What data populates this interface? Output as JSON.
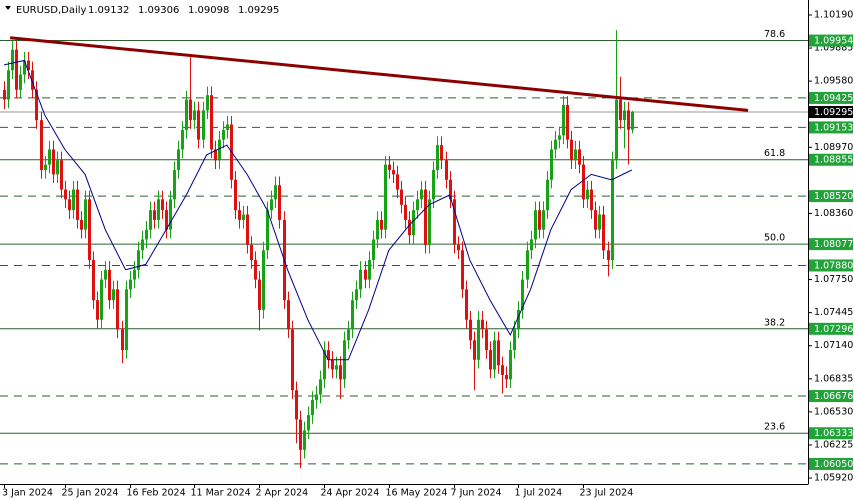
{
  "chart_data": {
    "type": "candlestick",
    "symbol": "EURUSD,Daily",
    "up_color": "#16a316",
    "down_color": "#e01010",
    "xlim": [
      -1,
      198.5
    ],
    "ylim": [
      1.05865,
      1.10328
    ],
    "xticks": [
      {
        "value": 0,
        "label": "3 Jan 2024"
      },
      {
        "value": 15,
        "label": "25 Jan 2024"
      },
      {
        "value": 31,
        "label": "16 Feb 2024"
      },
      {
        "value": 47,
        "label": "11 Mar 2024"
      },
      {
        "value": 63,
        "label": "2 Apr 2024"
      },
      {
        "value": 79,
        "label": "24 Apr 2024"
      },
      {
        "value": 95,
        "label": "16 May 2024"
      },
      {
        "value": 111,
        "label": "7 Jun 2024"
      },
      {
        "value": 127,
        "label": "1 Jul 2024"
      },
      {
        "value": 143,
        "label": "23 Jul 2024"
      }
    ],
    "yticks": [
      {
        "value": 1.1019,
        "label": "1.10190"
      },
      {
        "value": 1.09885,
        "label": "1.09885"
      },
      {
        "value": 1.0958,
        "label": "1.09580"
      },
      {
        "value": 1.0897,
        "label": "1.08970"
      },
      {
        "value": 1.0836,
        "label": "1.08360"
      },
      {
        "value": 1.0775,
        "label": "1.07750"
      },
      {
        "value": 1.07445,
        "label": "1.07445"
      },
      {
        "value": 1.0714,
        "label": "1.07140"
      },
      {
        "value": 1.06835,
        "label": "1.06835"
      },
      {
        "value": 1.0653,
        "label": "1.06530"
      },
      {
        "value": 1.06225,
        "label": "1.06225"
      },
      {
        "value": 1.0592,
        "label": "1.05920"
      }
    ],
    "levels": [
      {
        "value": 1.09954,
        "label": "1.09954",
        "fib": "78.6",
        "style": "solid"
      },
      {
        "value": 1.09425,
        "label": "1.09425",
        "style": "dashed"
      },
      {
        "value": 1.09153,
        "label": "1.09153",
        "style": "dashed"
      },
      {
        "value": 1.08855,
        "label": "1.08855",
        "fib": "61.8",
        "style": "solid"
      },
      {
        "value": 1.0852,
        "label": "1.08520",
        "style": "dashed"
      },
      {
        "value": 1.08077,
        "label": "1.08077",
        "fib": "50.0",
        "style": "solid"
      },
      {
        "value": 1.0788,
        "label": "1.07880",
        "style": "dashed"
      },
      {
        "value": 1.07296,
        "label": "1.07296",
        "fib": "38.2",
        "style": "solid"
      },
      {
        "value": 1.06676,
        "label": "1.06676",
        "style": "dashed"
      },
      {
        "value": 1.06333,
        "label": "1.06333",
        "fib": "23.6",
        "style": "solid"
      },
      {
        "value": 1.0605,
        "label": "1.06050",
        "style": "dashed"
      }
    ],
    "level_color": "#2f5f2f",
    "label_color": "#22a33a",
    "trendline": {
      "color": "#8b0000",
      "x": [
        1.5,
        183.7
      ],
      "y": [
        1.0998,
        1.0931
      ]
    },
    "ma": {
      "color": "#00008b",
      "x": [
        0,
        5,
        10,
        15,
        20,
        25,
        30,
        35,
        40,
        45,
        50,
        55,
        60,
        65,
        70,
        75,
        80,
        85,
        90,
        95,
        100,
        105,
        110,
        115,
        120,
        125,
        130,
        135,
        140,
        145,
        150,
        155
      ],
      "values": [
        1.0973,
        1.0977,
        1.0927,
        1.0895,
        1.0872,
        1.0821,
        1.0784,
        1.0789,
        1.0821,
        1.0853,
        1.089,
        1.0899,
        1.0872,
        1.0839,
        1.0784,
        1.0738,
        1.0701,
        1.0701,
        1.0747,
        1.0802,
        1.0825,
        1.0844,
        1.0853,
        1.0793,
        1.0756,
        1.0724,
        1.0766,
        1.0821,
        1.0858,
        1.0872,
        1.0867,
        1.0876
      ]
    },
    "candles": [
      [
        1.095,
        1.0958,
        1.0932,
        1.0941
      ],
      [
        1.0941,
        1.0976,
        1.0933,
        1.0968
      ],
      [
        1.0968,
        1.0995,
        1.096,
        1.0987
      ],
      [
        1.0987,
        1.0995,
        1.0942,
        1.095
      ],
      [
        1.095,
        1.0972,
        1.0942,
        1.0964
      ],
      [
        1.0964,
        1.0985,
        1.0956,
        1.0977
      ],
      [
        1.0977,
        1.0985,
        1.096,
        1.0968
      ],
      [
        1.0968,
        1.0976,
        1.0942,
        1.095
      ],
      [
        1.095,
        1.0958,
        1.0914,
        1.0922
      ],
      [
        1.0922,
        1.093,
        1.0868,
        1.0876
      ],
      [
        1.0876,
        1.0889,
        1.0868,
        1.0881
      ],
      [
        1.0881,
        1.0903,
        1.0873,
        1.0895
      ],
      [
        1.0895,
        1.0903,
        1.0864,
        1.0872
      ],
      [
        1.0872,
        1.0893,
        1.0864,
        1.0885
      ],
      [
        1.0885,
        1.0893,
        1.085,
        1.0858
      ],
      [
        1.0858,
        1.0866,
        1.0841,
        1.0849
      ],
      [
        1.0849,
        1.0857,
        1.0831,
        1.0839
      ],
      [
        1.0839,
        1.0866,
        1.0831,
        1.0858
      ],
      [
        1.0858,
        1.0866,
        1.0822,
        1.083
      ],
      [
        1.083,
        1.0838,
        1.0813,
        1.0821
      ],
      [
        1.0821,
        1.0857,
        1.0813,
        1.0849
      ],
      [
        1.0849,
        1.0857,
        1.0785,
        1.0793
      ],
      [
        1.0793,
        1.0801,
        1.0748,
        1.0756
      ],
      [
        1.0756,
        1.0764,
        1.073,
        1.0738
      ],
      [
        1.0738,
        1.0783,
        1.073,
        1.0775
      ],
      [
        1.0775,
        1.0792,
        1.0767,
        1.0784
      ],
      [
        1.0784,
        1.0792,
        1.0748,
        1.0756
      ],
      [
        1.0756,
        1.0774,
        1.0748,
        1.0766
      ],
      [
        1.0766,
        1.0774,
        1.0721,
        1.0729
      ],
      [
        1.0729,
        1.0737,
        1.0698,
        1.071
      ],
      [
        1.071,
        1.0774,
        1.0702,
        1.0766
      ],
      [
        1.0766,
        1.0783,
        1.0758,
        1.0775
      ],
      [
        1.0775,
        1.0792,
        1.0767,
        1.0784
      ],
      [
        1.0784,
        1.081,
        1.0776,
        1.0802
      ],
      [
        1.0802,
        1.082,
        1.0794,
        1.0812
      ],
      [
        1.0812,
        1.0829,
        1.0804,
        1.0821
      ],
      [
        1.0821,
        1.0847,
        1.0813,
        1.0839
      ],
      [
        1.0839,
        1.0847,
        1.0822,
        1.083
      ],
      [
        1.083,
        1.0857,
        1.0822,
        1.0849
      ],
      [
        1.0849,
        1.0857,
        1.0831,
        1.0839
      ],
      [
        1.0839,
        1.0847,
        1.0813,
        1.0821
      ],
      [
        1.0821,
        1.0857,
        1.0813,
        1.0849
      ],
      [
        1.0849,
        1.0884,
        1.0841,
        1.0876
      ],
      [
        1.0876,
        1.0903,
        1.0868,
        1.0895
      ],
      [
        1.0895,
        1.0921,
        1.0887,
        1.0913
      ],
      [
        1.0913,
        1.0949,
        1.0905,
        1.0941
      ],
      [
        1.0941,
        1.098,
        1.0914,
        1.0922
      ],
      [
        1.0922,
        1.0939,
        1.0914,
        1.0931
      ],
      [
        1.0931,
        1.0939,
        1.0896,
        1.0904
      ],
      [
        1.0904,
        1.0939,
        1.0896,
        1.0931
      ],
      [
        1.0931,
        1.0953,
        1.0923,
        1.0945
      ],
      [
        1.0945,
        1.0953,
        1.0887,
        1.0895
      ],
      [
        1.0895,
        1.0903,
        1.0877,
        1.0885
      ],
      [
        1.0885,
        1.0912,
        1.0877,
        1.0904
      ],
      [
        1.0904,
        1.0921,
        1.0896,
        1.0913
      ],
      [
        1.0913,
        1.0926,
        1.0905,
        1.0918
      ],
      [
        1.0918,
        1.0926,
        1.0859,
        1.0867
      ],
      [
        1.0867,
        1.0875,
        1.0831,
        1.0839
      ],
      [
        1.0839,
        1.0847,
        1.0822,
        1.083
      ],
      [
        1.083,
        1.0843,
        1.0822,
        1.0835
      ],
      [
        1.0835,
        1.0843,
        1.0799,
        1.0807
      ],
      [
        1.0807,
        1.0815,
        1.0785,
        1.0793
      ],
      [
        1.0793,
        1.0801,
        1.0767,
        1.0775
      ],
      [
        1.0775,
        1.0783,
        1.0728,
        1.0747
      ],
      [
        1.0747,
        1.081,
        1.0739,
        1.0802
      ],
      [
        1.0802,
        1.0847,
        1.0794,
        1.0839
      ],
      [
        1.0839,
        1.0857,
        1.0831,
        1.0849
      ],
      [
        1.0849,
        1.087,
        1.0841,
        1.0862
      ],
      [
        1.0862,
        1.087,
        1.0822,
        1.083
      ],
      [
        1.083,
        1.0838,
        1.0748,
        1.0756
      ],
      [
        1.0756,
        1.0764,
        1.0721,
        1.0729
      ],
      [
        1.0729,
        1.0737,
        1.0665,
        1.0673
      ],
      [
        1.0673,
        1.0681,
        1.0624,
        1.0646
      ],
      [
        1.0646,
        1.0654,
        1.0601,
        1.0618
      ],
      [
        1.0618,
        1.0644,
        1.061,
        1.0636
      ],
      [
        1.0636,
        1.0658,
        1.0628,
        1.065
      ],
      [
        1.065,
        1.0672,
        1.0642,
        1.0664
      ],
      [
        1.0664,
        1.0677,
        1.0656,
        1.0669
      ],
      [
        1.0669,
        1.0691,
        1.0661,
        1.0683
      ],
      [
        1.0683,
        1.0718,
        1.0675,
        1.071
      ],
      [
        1.071,
        1.0718,
        1.0693,
        1.0701
      ],
      [
        1.0701,
        1.0709,
        1.0684,
        1.0692
      ],
      [
        1.0692,
        1.0704,
        1.0684,
        1.0696
      ],
      [
        1.0696,
        1.0704,
        1.0665,
        1.0683
      ],
      [
        1.0683,
        1.0727,
        1.0675,
        1.0719
      ],
      [
        1.0719,
        1.0737,
        1.0711,
        1.0729
      ],
      [
        1.0729,
        1.0764,
        1.0721,
        1.0756
      ],
      [
        1.0756,
        1.0774,
        1.0748,
        1.0766
      ],
      [
        1.0766,
        1.0792,
        1.0758,
        1.0784
      ],
      [
        1.0784,
        1.0792,
        1.0767,
        1.0775
      ],
      [
        1.0775,
        1.0801,
        1.0767,
        1.0793
      ],
      [
        1.0793,
        1.082,
        1.0785,
        1.0812
      ],
      [
        1.0812,
        1.0838,
        1.0804,
        1.083
      ],
      [
        1.083,
        1.0838,
        1.0813,
        1.0821
      ],
      [
        1.0821,
        1.0889,
        1.0813,
        1.0881
      ],
      [
        1.0881,
        1.0889,
        1.0868,
        1.0876
      ],
      [
        1.0876,
        1.0884,
        1.0864,
        1.0872
      ],
      [
        1.0872,
        1.088,
        1.085,
        1.0858
      ],
      [
        1.0858,
        1.0866,
        1.0836,
        1.0844
      ],
      [
        1.0844,
        1.0852,
        1.0822,
        1.083
      ],
      [
        1.083,
        1.0838,
        1.0808,
        1.0816
      ],
      [
        1.0816,
        1.0847,
        1.0808,
        1.0839
      ],
      [
        1.0839,
        1.0857,
        1.0831,
        1.0849
      ],
      [
        1.0849,
        1.0866,
        1.0841,
        1.0858
      ],
      [
        1.0858,
        1.0866,
        1.0799,
        1.0807
      ],
      [
        1.0807,
        1.0857,
        1.0799,
        1.0849
      ],
      [
        1.0849,
        1.0884,
        1.0841,
        1.0876
      ],
      [
        1.0876,
        1.0907,
        1.0868,
        1.0899
      ],
      [
        1.0899,
        1.0907,
        1.0877,
        1.0885
      ],
      [
        1.0885,
        1.0893,
        1.0859,
        1.0867
      ],
      [
        1.0867,
        1.0875,
        1.0841,
        1.0849
      ],
      [
        1.0849,
        1.0857,
        1.0799,
        1.0807
      ],
      [
        1.0807,
        1.0815,
        1.0794,
        1.0802
      ],
      [
        1.0802,
        1.081,
        1.0758,
        1.0766
      ],
      [
        1.0766,
        1.0774,
        1.073,
        1.0738
      ],
      [
        1.0738,
        1.0746,
        1.0711,
        1.0719
      ],
      [
        1.0719,
        1.0727,
        1.0673,
        1.0701
      ],
      [
        1.0701,
        1.0746,
        1.0693,
        1.0738
      ],
      [
        1.0738,
        1.0746,
        1.0721,
        1.0729
      ],
      [
        1.0729,
        1.0737,
        1.0702,
        1.071
      ],
      [
        1.071,
        1.0718,
        1.0684,
        1.0692
      ],
      [
        1.0692,
        1.0727,
        1.0684,
        1.0719
      ],
      [
        1.0719,
        1.0727,
        1.0688,
        1.0696
      ],
      [
        1.0696,
        1.0704,
        1.067,
        1.0687
      ],
      [
        1.0687,
        1.0695,
        1.0675,
        1.0683
      ],
      [
        1.0683,
        1.0718,
        1.0675,
        1.071
      ],
      [
        1.071,
        1.0737,
        1.0702,
        1.0729
      ],
      [
        1.0729,
        1.0755,
        1.0721,
        1.0747
      ],
      [
        1.0747,
        1.0783,
        1.0739,
        1.0775
      ],
      [
        1.0775,
        1.081,
        1.0767,
        1.0802
      ],
      [
        1.0802,
        1.082,
        1.0794,
        1.0812
      ],
      [
        1.0812,
        1.0847,
        1.0804,
        1.0839
      ],
      [
        1.0839,
        1.0847,
        1.0813,
        1.0821
      ],
      [
        1.0821,
        1.0847,
        1.0813,
        1.0839
      ],
      [
        1.0839,
        1.0875,
        1.0831,
        1.0867
      ],
      [
        1.0867,
        1.0903,
        1.0859,
        1.0895
      ],
      [
        1.0895,
        1.0912,
        1.0887,
        1.0904
      ],
      [
        1.0904,
        1.0916,
        1.0896,
        1.0908
      ],
      [
        1.0908,
        1.0944,
        1.09,
        1.0936
      ],
      [
        1.0936,
        1.0944,
        1.0896,
        1.0904
      ],
      [
        1.0904,
        1.0912,
        1.0877,
        1.0885
      ],
      [
        1.0885,
        1.0903,
        1.0877,
        1.0895
      ],
      [
        1.0895,
        1.0903,
        1.0873,
        1.0881
      ],
      [
        1.0881,
        1.0889,
        1.0841,
        1.0849
      ],
      [
        1.0849,
        1.0866,
        1.0841,
        1.0858
      ],
      [
        1.0858,
        1.0866,
        1.0831,
        1.0839
      ],
      [
        1.0839,
        1.0847,
        1.0813,
        1.0821
      ],
      [
        1.0821,
        1.0843,
        1.0813,
        1.0835
      ],
      [
        1.0835,
        1.0843,
        1.0794,
        1.0802
      ],
      [
        1.0802,
        1.081,
        1.0778,
        1.0793
      ],
      [
        1.0793,
        1.0893,
        1.0785,
        1.0885
      ],
      [
        1.0885,
        1.1005,
        1.0877,
        1.0941
      ],
      [
        1.0941,
        1.0962,
        1.0914,
        1.0922
      ],
      [
        1.0922,
        1.0939,
        1.0896,
        1.0931
      ],
      [
        1.0931,
        1.0939,
        1.0881,
        1.09132
      ],
      [
        1.09132,
        1.09306,
        1.09098,
        1.09295
      ]
    ]
  }
}
